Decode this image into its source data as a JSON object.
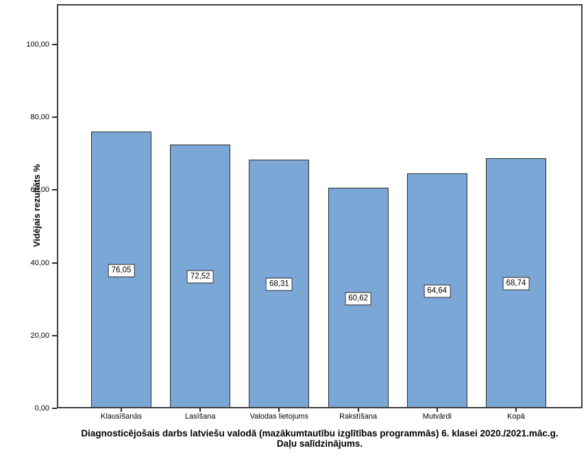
{
  "chart_data": {
    "type": "bar",
    "categories": [
      "Klausīšanās",
      "Lasīšana",
      "Valodas lietojums",
      "Rakstīšana",
      "Mutvārdi",
      "Kopā"
    ],
    "values": [
      76.05,
      72.52,
      68.31,
      60.62,
      64.64,
      68.74
    ],
    "value_labels": [
      "76,05",
      "72,52",
      "68,31",
      "60,62",
      "64,64",
      "68,74"
    ],
    "title": "Diagnosticējošais darbs latviešu valodā (mazākumtautību izglītības programmās) 6. klasei 2020./2021.māc.g.",
    "subtitle": "Daļu salīdzinājums.",
    "xlabel": "",
    "ylabel": "Vidējais rezultāts %",
    "yticks": [
      0,
      20,
      40,
      60,
      80,
      100
    ],
    "ytick_labels": [
      "0,00",
      "20,00",
      "40,00",
      "60,00",
      "80,00",
      "100,00"
    ],
    "ylim": [
      0,
      111.1
    ],
    "grid": false,
    "legend_position": "none",
    "bar_color": "#7BA7D6",
    "bar_border_color": "#2b2b2b",
    "frame_color": "#3d3d3d"
  }
}
